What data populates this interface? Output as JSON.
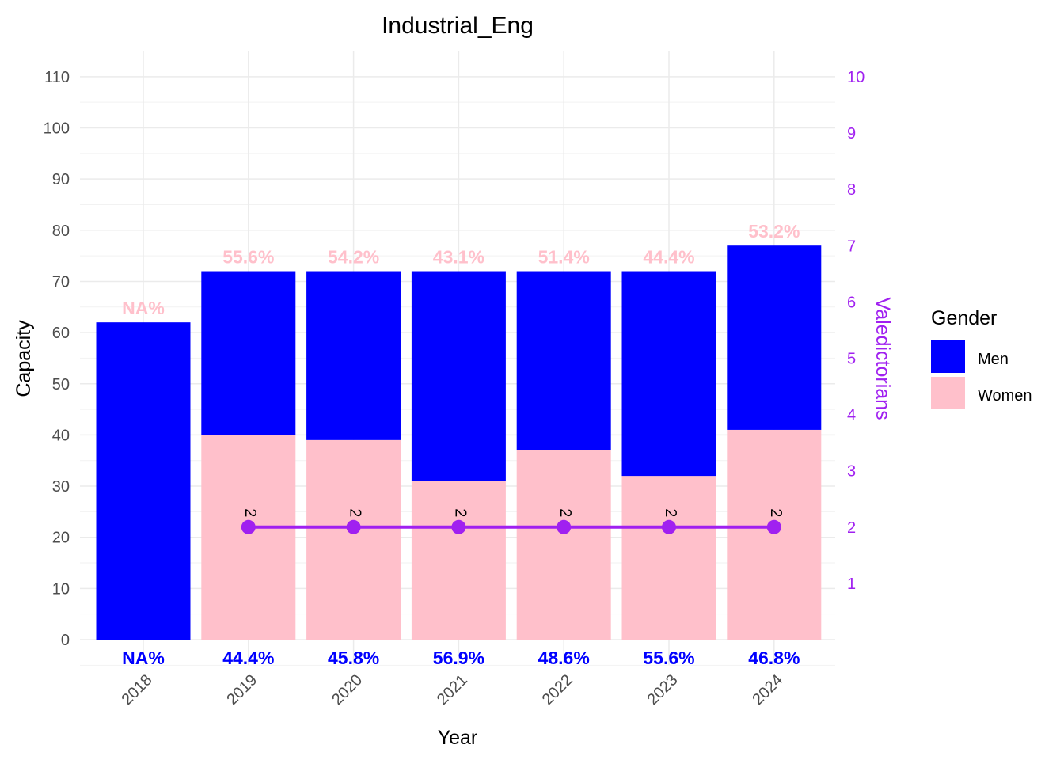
{
  "chart_data": {
    "type": "bar",
    "title": "Industrial_Eng",
    "xlabel": "Year",
    "ylabel": "Capacity",
    "y2label": "Valedictorians",
    "ylim": [
      0,
      110
    ],
    "y2lim": [
      0,
      10
    ],
    "y_ticks": [
      "0",
      "10",
      "20",
      "30",
      "40",
      "50",
      "60",
      "70",
      "80",
      "90",
      "100",
      "110"
    ],
    "y2_ticks": [
      "1",
      "2",
      "3",
      "4",
      "5",
      "6",
      "7",
      "8",
      "9",
      "10"
    ],
    "stacked": true,
    "categories": [
      "2018",
      "2019",
      "2020",
      "2021",
      "2022",
      "2023",
      "2024"
    ],
    "series": [
      {
        "name": "Women",
        "values": [
          0,
          40,
          39,
          31,
          37,
          32,
          41
        ],
        "color": "#ffc0cb"
      },
      {
        "name": "Men",
        "values": [
          62,
          32,
          33,
          41,
          35,
          40,
          36
        ],
        "color": "#0000ff"
      }
    ],
    "women_pct_labels": [
      "NA%",
      "55.6%",
      "54.2%",
      "43.1%",
      "51.4%",
      "44.4%",
      "53.2%"
    ],
    "men_pct_labels": [
      "NA%",
      "44.4%",
      "45.8%",
      "56.9%",
      "48.6%",
      "55.6%",
      "46.8%"
    ],
    "valedictorians": {
      "color": "#a020f0",
      "values": [
        null,
        2,
        2,
        2,
        2,
        2,
        2
      ],
      "labels": [
        "",
        "2",
        "2",
        "2",
        "2",
        "2",
        "2"
      ]
    },
    "grid": true,
    "legend": {
      "title": "Gender",
      "position": "right",
      "items": [
        {
          "label": "Men",
          "color": "#0000ff"
        },
        {
          "label": "Women",
          "color": "#ffc0cb"
        }
      ]
    }
  }
}
